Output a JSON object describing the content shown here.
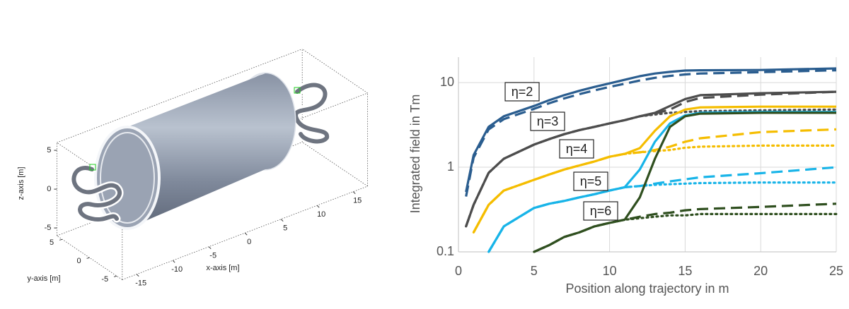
{
  "chart_data": [
    {
      "type": "3d",
      "xlabel": "x-axis [m]",
      "ylabel": "y-axis [m]",
      "zlabel": "z-axis [m]",
      "xlim": [
        -17,
        17
      ],
      "ylim": [
        -6,
        6
      ],
      "zlim": [
        -6,
        6
      ],
      "xticks": [
        -15,
        -10,
        -5,
        0,
        5,
        10,
        15
      ],
      "yticks": [
        -5,
        0,
        5
      ],
      "zticks": [
        -5,
        0,
        5
      ]
    },
    {
      "type": "line",
      "xlabel": "Position along trajectory in m",
      "ylabel": "Integrated field in Tm",
      "log_y": true,
      "grid": true,
      "xlim": [
        0,
        25
      ],
      "ylim": [
        0.1,
        20
      ],
      "xticks": [
        0,
        5,
        10,
        15,
        20,
        25
      ],
      "yticks": [
        0.1,
        1,
        10
      ],
      "x": [
        0.5,
        1,
        2,
        3,
        5,
        6,
        7,
        8,
        9,
        10,
        11,
        12,
        13,
        14,
        15,
        16,
        20,
        25
      ],
      "series": [
        {
          "color": "#2a5d8f",
          "style": "solid",
          "values": [
            0.51,
            1.39,
            3.0,
            4.0,
            5.3,
            6.2,
            7.1,
            8.0,
            8.9,
            9.8,
            10.8,
            11.9,
            12.8,
            13.4,
            13.9,
            14.0,
            14.1,
            14.7
          ]
        },
        {
          "color": "#2a5d8f",
          "style": "dashed",
          "values": [
            0.45,
            1.3,
            2.8,
            3.7,
            4.9,
            5.7,
            6.5,
            7.3,
            8.1,
            8.9,
            9.7,
            10.6,
            11.4,
            12.0,
            12.5,
            12.8,
            13.3,
            14.0
          ]
        },
        {
          "color": "#4d4d4d",
          "style": "solid",
          "values": [
            0.2,
            0.36,
            0.86,
            1.26,
            1.85,
            2.15,
            2.46,
            2.75,
            3.0,
            3.3,
            3.6,
            4.0,
            4.4,
            5.3,
            6.4,
            7.1,
            7.5,
            7.8
          ]
        },
        {
          "color": "#4d4d4d",
          "style": "dashed",
          "values": [
            0.2,
            0.36,
            0.86,
            1.26,
            1.85,
            2.15,
            2.46,
            2.75,
            3.0,
            3.3,
            3.6,
            4.0,
            4.3,
            4.8,
            5.9,
            6.6,
            7.2,
            7.8
          ]
        },
        {
          "color": "#4d4d4d",
          "style": "dotted",
          "values": [
            0.2,
            0.36,
            0.86,
            1.26,
            1.85,
            2.15,
            2.46,
            2.75,
            3.0,
            3.3,
            3.6,
            4.0,
            4.2,
            4.4,
            4.5,
            4.6,
            4.7,
            4.8
          ]
        },
        {
          "color": "#f5bd00",
          "style": "solid",
          "values": [
            null,
            0.17,
            0.36,
            0.53,
            0.71,
            0.82,
            0.94,
            1.05,
            1.17,
            1.33,
            1.44,
            1.68,
            2.7,
            4.0,
            4.8,
            5.1,
            5.2,
            5.2
          ]
        },
        {
          "color": "#f5bd00",
          "style": "dashed",
          "values": [
            null,
            0.17,
            0.36,
            0.53,
            0.71,
            0.82,
            0.94,
            1.05,
            1.17,
            1.33,
            1.44,
            1.5,
            1.6,
            1.75,
            2.0,
            2.2,
            2.6,
            2.8
          ]
        },
        {
          "color": "#f5bd00",
          "style": "dotted",
          "values": [
            null,
            0.17,
            0.36,
            0.53,
            0.71,
            0.82,
            0.94,
            1.05,
            1.17,
            1.33,
            1.44,
            1.5,
            1.55,
            1.6,
            1.7,
            1.75,
            1.8,
            1.8
          ]
        },
        {
          "color": "#18b4e8",
          "style": "solid",
          "values": [
            null,
            null,
            0.1,
            0.2,
            0.33,
            0.37,
            0.4,
            0.44,
            0.48,
            0.53,
            0.58,
            0.94,
            2.0,
            3.3,
            4.1,
            4.4,
            4.5,
            4.5
          ]
        },
        {
          "color": "#18b4e8",
          "style": "dashed",
          "values": [
            null,
            null,
            0.1,
            0.2,
            0.33,
            0.37,
            0.4,
            0.44,
            0.48,
            0.53,
            0.58,
            0.6,
            0.64,
            0.68,
            0.72,
            0.76,
            0.85,
            1.0
          ]
        },
        {
          "color": "#18b4e8",
          "style": "dotted",
          "values": [
            null,
            null,
            0.1,
            0.2,
            0.33,
            0.37,
            0.4,
            0.44,
            0.48,
            0.53,
            0.58,
            0.6,
            0.62,
            0.63,
            0.64,
            0.65,
            0.66,
            0.66
          ]
        },
        {
          "color": "#2f4f1f",
          "style": "solid",
          "values": [
            null,
            null,
            null,
            null,
            0.1,
            0.12,
            0.15,
            0.17,
            0.2,
            0.22,
            0.24,
            0.44,
            1.26,
            3.0,
            4.0,
            4.3,
            4.4,
            4.4
          ]
        },
        {
          "color": "#2f4f1f",
          "style": "dashed",
          "values": [
            null,
            null,
            null,
            null,
            0.1,
            0.12,
            0.15,
            0.17,
            0.2,
            0.22,
            0.24,
            0.26,
            0.28,
            0.29,
            0.31,
            0.32,
            0.34,
            0.37
          ]
        },
        {
          "color": "#2f4f1f",
          "style": "dotted",
          "values": [
            null,
            null,
            null,
            null,
            0.1,
            0.12,
            0.15,
            0.17,
            0.2,
            0.22,
            0.24,
            0.25,
            0.26,
            0.27,
            0.27,
            0.28,
            0.28,
            0.28
          ]
        }
      ],
      "annotations": [
        "η=2",
        "η=3",
        "η=4",
        "η=5",
        "η=6"
      ]
    }
  ]
}
